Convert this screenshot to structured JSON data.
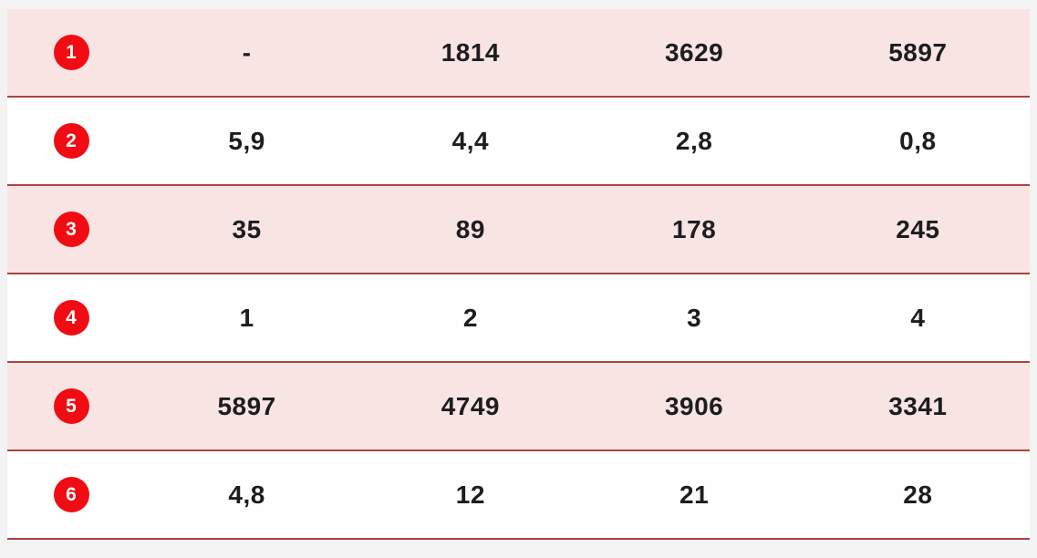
{
  "theme": {
    "page_background": "#f3f3f3",
    "row_pink": "#f8e4e3",
    "row_white": "#fefefe",
    "separator_color": "#a94343",
    "badge_color": "#f10c13",
    "badge_text_color": "#ffffff",
    "value_text_color": "#1d1d1f"
  },
  "table": {
    "rows": [
      {
        "badge": "1",
        "values": [
          "-",
          "1814",
          "3629",
          "5897"
        ]
      },
      {
        "badge": "2",
        "values": [
          "5,9",
          "4,4",
          "2,8",
          "0,8"
        ]
      },
      {
        "badge": "3",
        "values": [
          "35",
          "89",
          "178",
          "245"
        ]
      },
      {
        "badge": "4",
        "values": [
          "1",
          "2",
          "3",
          "4"
        ]
      },
      {
        "badge": "5",
        "values": [
          "5897",
          "4749",
          "3906",
          "3341"
        ]
      },
      {
        "badge": "6",
        "values": [
          "4,8",
          "12",
          "21",
          "28"
        ]
      }
    ]
  },
  "chart_data": {
    "type": "table",
    "title": "",
    "row_labels": [
      "1",
      "2",
      "3",
      "4",
      "5",
      "6"
    ],
    "rows": [
      [
        "-",
        "1814",
        "3629",
        "5897"
      ],
      [
        "5,9",
        "4,4",
        "2,8",
        "0,8"
      ],
      [
        "35",
        "89",
        "178",
        "245"
      ],
      [
        "1",
        "2",
        "3",
        "4"
      ],
      [
        "5897",
        "4749",
        "3906",
        "3341"
      ],
      [
        "4,8",
        "12",
        "21",
        "28"
      ]
    ]
  }
}
